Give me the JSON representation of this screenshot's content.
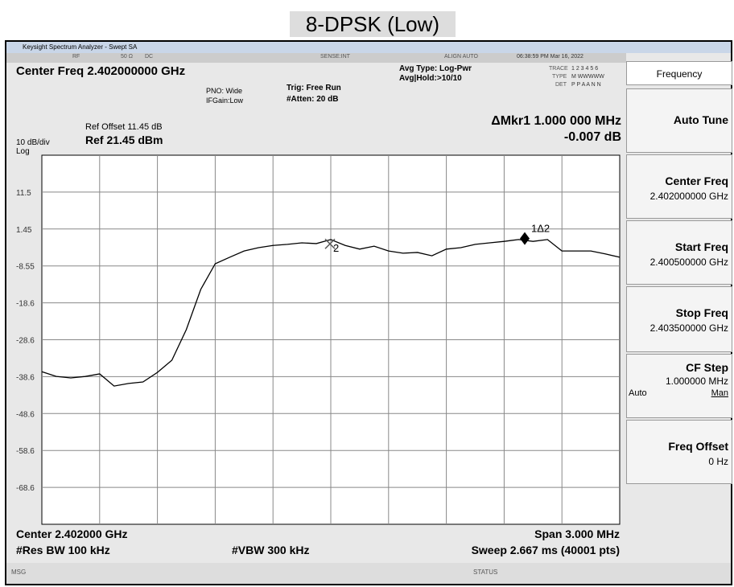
{
  "title": "8-DPSK (Low)",
  "window": {
    "title": "Keysight Spectrum Analyzer - Swept SA"
  },
  "status_bar": {
    "rf": "RF",
    "impedance": "50 Ω",
    "coupling": "DC",
    "sense": "SENSE:INT",
    "align": "ALIGN AUTO",
    "datetime": "06:38:59 PM Mar 16, 2022"
  },
  "settings": {
    "center_freq": "Center Freq 2.402000000 GHz",
    "pno": "PNO: Wide",
    "ifgain": "IFGain:Low",
    "trig": "Trig: Free Run",
    "atten": "#Atten: 20 dB",
    "avg_type": "Avg Type: Log-Pwr",
    "avg_hold": "Avg|Hold:>10/10",
    "trace_row": "TRACE",
    "trace_nums": "1 2 3 4 5 6",
    "type_row": "TYPE",
    "type_vals": "M WWWWW",
    "det_row": "DET",
    "det_vals": "P P A A N N"
  },
  "plot": {
    "ref_offset": "Ref Offset 11.45 dB",
    "scale": "10 dB/div",
    "scale_type": "Log",
    "ref_level": "Ref 21.45 dBm",
    "marker_readout": "ΔMkr1 1.000 000 MHz",
    "marker_value": "-0.007 dB",
    "ylim": [
      -78.55,
      21.45
    ],
    "yticks": [
      {
        "value": 11.45,
        "label": "11.5"
      },
      1.45,
      -8.55,
      {
        "value": -18.55,
        "label": "-18.6"
      },
      {
        "value": -28.55,
        "label": "-28.6"
      },
      {
        "value": -38.55,
        "label": "-38.6"
      },
      {
        "value": -48.55,
        "label": "-48.6"
      },
      {
        "value": -58.55,
        "label": "-58.6"
      },
      {
        "value": -68.55,
        "label": "-68.6"
      }
    ],
    "trace": {
      "color": "#000000",
      "values": [
        -37.2,
        -38.5,
        -38.9,
        -38.5,
        -37.8,
        -41.1,
        -40.4,
        -40.0,
        -37.4,
        -34.1,
        -25.8,
        -14.9,
        -7.96,
        -6.2,
        -4.5,
        -3.6,
        -3.0,
        -2.7,
        -2.3,
        -2.5,
        -1.4,
        -3.0,
        -4.0,
        -3.2,
        -4.5,
        -5.1,
        -4.9,
        -5.8,
        -4.0,
        -3.6,
        -2.7,
        -2.3,
        -1.9,
        -1.4,
        -1.9,
        -1.4,
        -4.5,
        -4.5,
        -4.5,
        -5.3,
        -6.2
      ]
    },
    "markers": [
      {
        "label": "1Δ2",
        "value": -2.0
      },
      {
        "label": "2",
        "value": -3.0
      }
    ]
  },
  "footer": {
    "center": "Center 2.402000 GHz",
    "rbw": "#Res BW 100 kHz",
    "vbw": "#VBW 300 kHz",
    "span": "Span 3.000 MHz",
    "sweep": "Sweep  2.667 ms (40001 pts)",
    "msg": "MSG",
    "status": "STATUS"
  },
  "menu": {
    "title": "Frequency",
    "items": [
      {
        "label": "Auto Tune"
      },
      {
        "label": "Center Freq",
        "value": "2.402000000 GHz"
      },
      {
        "label": "Start Freq",
        "value": "2.400500000 GHz"
      },
      {
        "label": "Stop Freq",
        "value": "2.403500000 GHz"
      },
      {
        "label": "CF Step",
        "value": "1.000000 MHz",
        "left": "Auto",
        "right": "Man"
      },
      {
        "label": "Freq Offset",
        "value": "0 Hz"
      }
    ]
  }
}
